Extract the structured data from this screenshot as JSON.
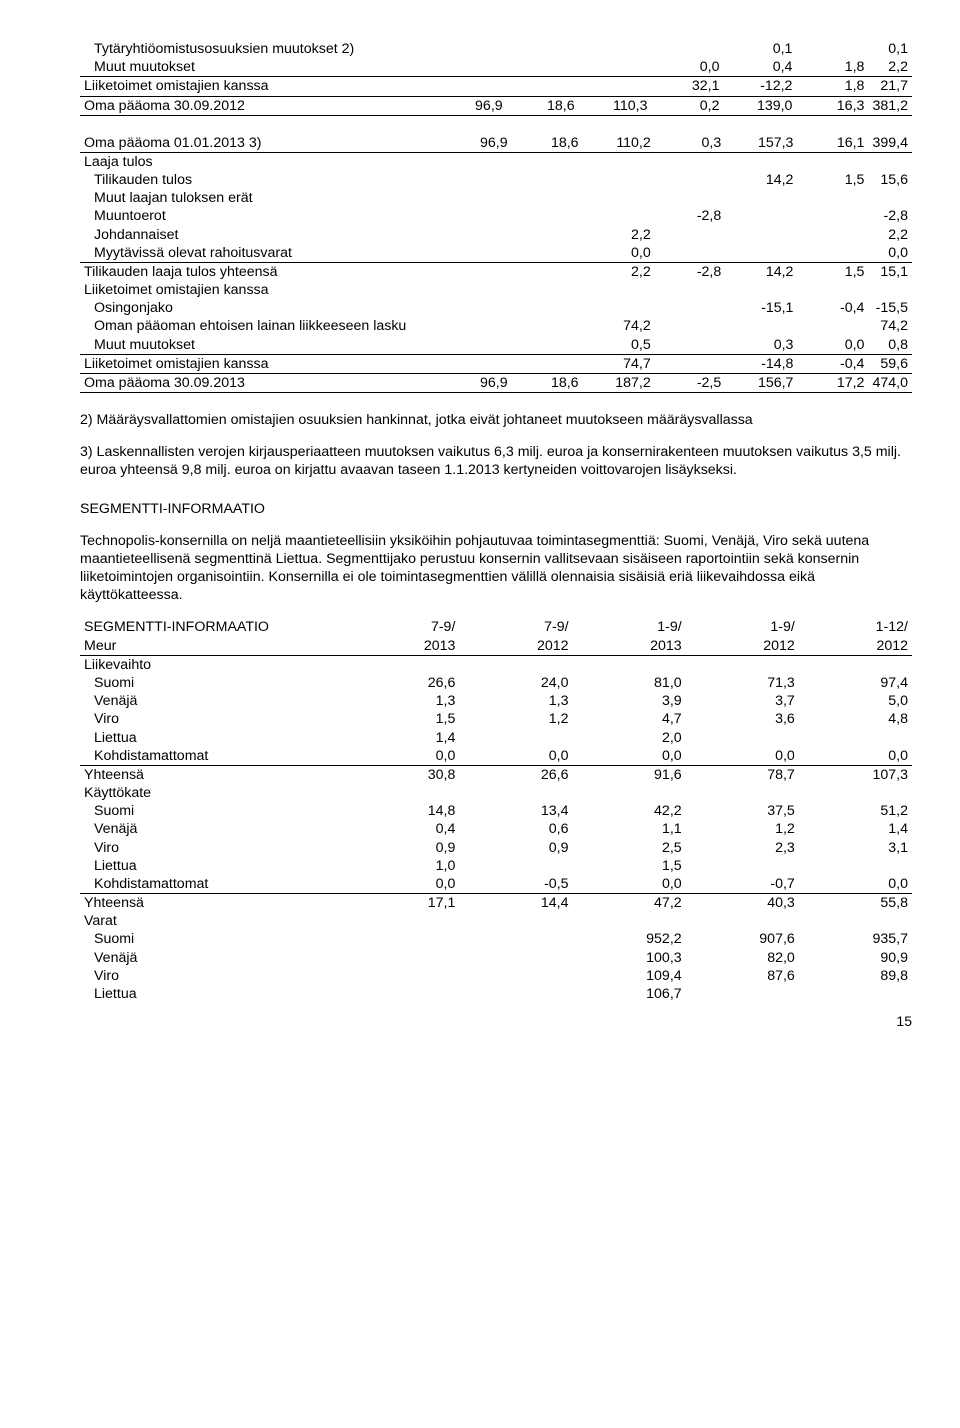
{
  "table1": {
    "rows": [
      {
        "label": "Tytäryhtiöomistusosuuksien muutokset 2)",
        "d": [
          "",
          "",
          "",
          "0,1",
          "",
          "0,1"
        ],
        "indent": 1
      },
      {
        "label": "Muut muutokset",
        "d": [
          "",
          "",
          "0,0",
          "0,4",
          "1,8",
          "2,2"
        ],
        "indent": 1
      },
      {
        "label": "Liiketoimet omistajien kanssa",
        "d": [
          "",
          "",
          "32,1",
          "-12,2",
          "1,8",
          "21,7"
        ],
        "indent": 0,
        "bt": true
      },
      {
        "label": "Oma pääoma 30.09.2012",
        "d": [
          "96,9",
          "18,6",
          "110,3",
          "0,2",
          "139,0",
          "16,3",
          "381,2"
        ],
        "indent": 0,
        "bt": true,
        "bb": true
      }
    ]
  },
  "table2": {
    "rows": [
      {
        "label": "Oma pääoma 01.01.2013 3)",
        "d": [
          "96,9",
          "18,6",
          "110,2",
          "0,3",
          "157,3",
          "16,1",
          "399,4"
        ],
        "indent": 0,
        "bb": true
      },
      {
        "label": "Laaja tulos",
        "d": [
          "",
          "",
          "",
          "",
          "",
          "",
          ""
        ],
        "indent": 0
      },
      {
        "label": "Tilikauden tulos",
        "d": [
          "",
          "",
          "",
          "",
          "14,2",
          "1,5",
          "15,6"
        ],
        "indent": 1
      },
      {
        "label": "Muut laajan tuloksen erät",
        "d": [
          "",
          "",
          "",
          "",
          "",
          "",
          ""
        ],
        "indent": 1
      },
      {
        "label": "Muuntoerot",
        "d": [
          "",
          "",
          "",
          "-2,8",
          "",
          "",
          "-2,8"
        ],
        "indent": 1
      },
      {
        "label": "Johdannaiset",
        "d": [
          "",
          "",
          "2,2",
          "",
          "",
          "",
          "2,2"
        ],
        "indent": 1
      },
      {
        "label": "Myytävissä olevat rahoitusvarat",
        "d": [
          "",
          "",
          "0,0",
          "",
          "",
          "",
          "0,0"
        ],
        "indent": 1
      },
      {
        "label": "Tilikauden laaja tulos yhteensä",
        "d": [
          "",
          "",
          "2,2",
          "-2,8",
          "14,2",
          "1,5",
          "15,1"
        ],
        "indent": 0,
        "bt": true
      },
      {
        "label": "Liiketoimet omistajien kanssa",
        "d": [
          "",
          "",
          "",
          "",
          "",
          "",
          ""
        ],
        "indent": 0
      },
      {
        "label": "Osingonjako",
        "d": [
          "",
          "",
          "",
          "",
          "-15,1",
          "-0,4",
          "-15,5"
        ],
        "indent": 1
      },
      {
        "label": "Oman pääoman ehtoisen lainan liikkeeseen lasku",
        "d": [
          "",
          "",
          "74,2",
          "",
          "",
          "",
          "74,2"
        ],
        "indent": 1
      },
      {
        "label": "Muut muutokset",
        "d": [
          "",
          "",
          "0,5",
          "",
          "0,3",
          "0,0",
          "0,8"
        ],
        "indent": 1
      },
      {
        "label": "Liiketoimet omistajien kanssa",
        "d": [
          "",
          "",
          "74,7",
          "",
          "-14,8",
          "-0,4",
          "59,6"
        ],
        "indent": 0,
        "bt": true
      },
      {
        "label": "Oma pääoma 30.09.2013",
        "d": [
          "96,9",
          "18,6",
          "187,2",
          "-2,5",
          "156,7",
          "17,2",
          "474,0"
        ],
        "indent": 0,
        "bt": true,
        "bb": true
      }
    ]
  },
  "para1": "2) Määräysvallattomien omistajien osuuksien hankinnat, jotka eivät johtaneet muutokseen määräysvallassa",
  "para2": "3) Laskennallisten verojen kirjausperiaatteen muutoksen vaikutus 6,3 milj. euroa ja konsernirakenteen muutoksen vaikutus 3,5 milj. euroa yhteensä 9,8 milj. euroa on kirjattu avaavan taseen 1.1.2013 kertyneiden voittovarojen lisäykseksi.",
  "segTitle": "SEGMENTTI-INFORMAATIO",
  "para3": "Technopolis-konsernilla on neljä maantieteellisiin yksiköihin pohjautuvaa toimintasegmenttiä: Suomi, Venäjä, Viro sekä uutena maantieteellisenä segmenttinä Liettua. Segmenttijako perustuu konsernin vallitsevaan sisäiseen raportointiin sekä konsernin liiketoimintojen organisointiin. Konsernilla ei ole toimintasegmenttien välillä olennaisia sisäisiä eriä liikevaihdossa eikä käyttökatteessa.",
  "seg": {
    "h1": {
      "label": "SEGMENTTI-INFORMAATIO",
      "d": [
        "7-9/",
        "7-9/",
        "1-9/",
        "1-9/",
        "1-12/"
      ]
    },
    "h2": {
      "label": "Meur",
      "d": [
        "2013",
        "2012",
        "2013",
        "2012",
        "2012"
      ]
    },
    "rows": [
      {
        "label": "Liikevaihto",
        "d": [
          "",
          "",
          "",
          "",
          ""
        ],
        "indent": 0
      },
      {
        "label": "Suomi",
        "d": [
          "26,6",
          "24,0",
          "81,0",
          "71,3",
          "97,4"
        ],
        "indent": 1
      },
      {
        "label": "Venäjä",
        "d": [
          "1,3",
          "1,3",
          "3,9",
          "3,7",
          "5,0"
        ],
        "indent": 1
      },
      {
        "label": "Viro",
        "d": [
          "1,5",
          "1,2",
          "4,7",
          "3,6",
          "4,8"
        ],
        "indent": 1
      },
      {
        "label": "Liettua",
        "d": [
          "1,4",
          "",
          "2,0",
          "",
          ""
        ],
        "indent": 1
      },
      {
        "label": "Kohdistamattomat",
        "d": [
          "0,0",
          "0,0",
          "0,0",
          "0,0",
          "0,0"
        ],
        "indent": 1
      },
      {
        "label": "Yhteensä",
        "d": [
          "30,8",
          "26,6",
          "91,6",
          "78,7",
          "107,3"
        ],
        "indent": 0,
        "bt": true
      },
      {
        "label": "Käyttökate",
        "d": [
          "",
          "",
          "",
          "",
          ""
        ],
        "indent": 0
      },
      {
        "label": "Suomi",
        "d": [
          "14,8",
          "13,4",
          "42,2",
          "37,5",
          "51,2"
        ],
        "indent": 1
      },
      {
        "label": "Venäjä",
        "d": [
          "0,4",
          "0,6",
          "1,1",
          "1,2",
          "1,4"
        ],
        "indent": 1
      },
      {
        "label": "Viro",
        "d": [
          "0,9",
          "0,9",
          "2,5",
          "2,3",
          "3,1"
        ],
        "indent": 1
      },
      {
        "label": "Liettua",
        "d": [
          "1,0",
          "",
          "1,5",
          "",
          ""
        ],
        "indent": 1
      },
      {
        "label": "Kohdistamattomat",
        "d": [
          "0,0",
          "-0,5",
          "0,0",
          "-0,7",
          "0,0"
        ],
        "indent": 1
      },
      {
        "label": "Yhteensä",
        "d": [
          "17,1",
          "14,4",
          "47,2",
          "40,3",
          "55,8"
        ],
        "indent": 0,
        "bt": true
      },
      {
        "label": "Varat",
        "d": [
          "",
          "",
          "",
          "",
          ""
        ],
        "indent": 0
      },
      {
        "label": "Suomi",
        "d": [
          "",
          "",
          "952,2",
          "907,6",
          "935,7"
        ],
        "indent": 1
      },
      {
        "label": "Venäjä",
        "d": [
          "",
          "",
          "100,3",
          "82,0",
          "90,9"
        ],
        "indent": 1
      },
      {
        "label": "Viro",
        "d": [
          "",
          "",
          "109,4",
          "87,6",
          "89,8"
        ],
        "indent": 1
      },
      {
        "label": "Liettua",
        "d": [
          "",
          "",
          "106,7",
          "",
          ""
        ],
        "indent": 1
      }
    ]
  },
  "pagenum": "15"
}
